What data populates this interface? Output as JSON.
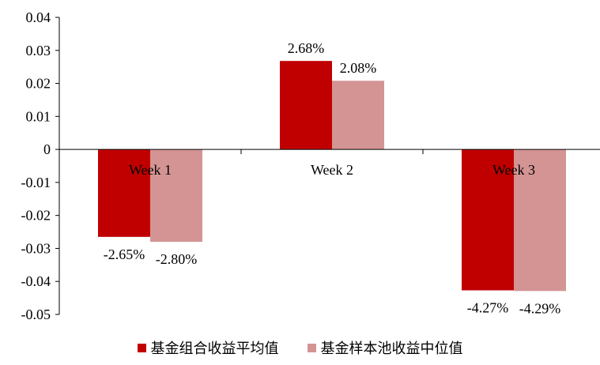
{
  "chart_data": {
    "type": "bar",
    "categories": [
      "Week 1",
      "Week 2",
      "Week 3"
    ],
    "series": [
      {
        "name": "基金组合收益平均值",
        "values": [
          -0.0265,
          0.0268,
          -0.0427
        ],
        "labels": [
          "-2.65%",
          "2.68%",
          "-4.27%"
        ],
        "color": "#c00000"
      },
      {
        "name": "基金样本池收益中位值",
        "values": [
          -0.028,
          0.0208,
          -0.0429
        ],
        "labels": [
          "-2.80%",
          "2.08%",
          "-4.29%"
        ],
        "color": "#d49494"
      }
    ],
    "ylim": [
      -0.05,
      0.04
    ],
    "yticks": [
      0.04,
      0.03,
      0.02,
      0.01,
      0,
      -0.01,
      -0.02,
      -0.03,
      -0.04,
      -0.05
    ],
    "ytick_labels": [
      "0.04",
      "0.03",
      "0.02",
      "0.01",
      "0",
      "-0.01",
      "-0.02",
      "-0.03",
      "-0.04",
      "-0.05"
    ],
    "grid": false,
    "legend_position": "bottom"
  }
}
